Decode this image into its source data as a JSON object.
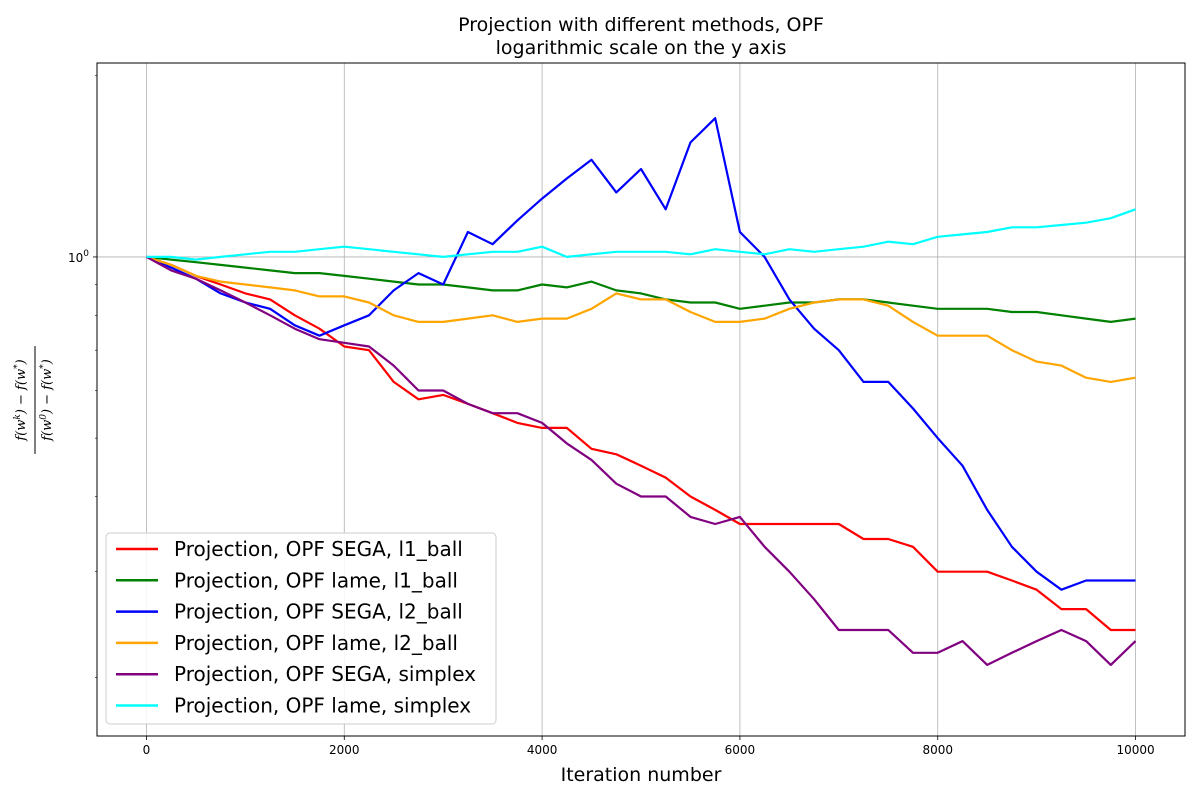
{
  "chart_data": {
    "type": "line",
    "title": "Projection with different methods, OPF",
    "subtitle": "logarithmic scale on the y axis",
    "xlabel": "Iteration number",
    "ylabel": "(f(w^k) − f(w*)) / (f(w^0) − f(w*))",
    "xlim": [
      -500,
      10500
    ],
    "xticks": [
      0,
      2000,
      4000,
      6000,
      8000,
      10000
    ],
    "ylim": [
      0.16,
      2.1
    ],
    "yscale": "log",
    "yticks": [
      1
    ],
    "yticklabel_base": "10",
    "yticklabel_exp": "0",
    "grid": true,
    "legend_position": "lower-left",
    "series": [
      {
        "name": "Projection, OPF SEGA, l1_ball",
        "color": "#ff0000",
        "x": [
          0,
          250,
          500,
          750,
          1000,
          1250,
          1500,
          1750,
          2000,
          2250,
          2500,
          2750,
          3000,
          3250,
          3500,
          3750,
          4000,
          4250,
          4500,
          4750,
          5000,
          5250,
          5500,
          5750,
          6000,
          6250,
          6500,
          6750,
          7000,
          7250,
          7500,
          7750,
          8000,
          8250,
          8500,
          8750,
          9000,
          9250,
          9500,
          9750,
          10000
        ],
        "y": [
          1.0,
          0.97,
          0.93,
          0.9,
          0.87,
          0.85,
          0.8,
          0.76,
          0.71,
          0.7,
          0.62,
          0.58,
          0.59,
          0.57,
          0.55,
          0.53,
          0.52,
          0.52,
          0.48,
          0.47,
          0.45,
          0.43,
          0.4,
          0.38,
          0.36,
          0.36,
          0.36,
          0.36,
          0.36,
          0.34,
          0.34,
          0.33,
          0.3,
          0.3,
          0.3,
          0.29,
          0.28,
          0.26,
          0.26,
          0.24,
          0.24
        ]
      },
      {
        "name": "Projection, OPF lame, l1_ball",
        "color": "#008000",
        "x": [
          0,
          250,
          500,
          750,
          1000,
          1250,
          1500,
          1750,
          2000,
          2250,
          2500,
          2750,
          3000,
          3250,
          3500,
          3750,
          4000,
          4250,
          4500,
          4750,
          5000,
          5250,
          5500,
          5750,
          6000,
          6250,
          6500,
          6750,
          7000,
          7250,
          7500,
          7750,
          8000,
          8250,
          8500,
          8750,
          9000,
          9250,
          9500,
          9750,
          10000
        ],
        "y": [
          1.0,
          0.99,
          0.98,
          0.97,
          0.96,
          0.95,
          0.94,
          0.94,
          0.93,
          0.92,
          0.91,
          0.9,
          0.9,
          0.89,
          0.88,
          0.88,
          0.9,
          0.89,
          0.91,
          0.88,
          0.87,
          0.85,
          0.84,
          0.84,
          0.82,
          0.83,
          0.84,
          0.84,
          0.85,
          0.85,
          0.84,
          0.83,
          0.82,
          0.82,
          0.82,
          0.81,
          0.81,
          0.8,
          0.79,
          0.78,
          0.79
        ]
      },
      {
        "name": "Projection, OPF SEGA, l2_ball",
        "color": "#0000ff",
        "x": [
          0,
          250,
          500,
          750,
          1000,
          1250,
          1500,
          1750,
          2000,
          2250,
          2500,
          2750,
          3000,
          3250,
          3500,
          3750,
          4000,
          4250,
          4500,
          4750,
          5000,
          5250,
          5500,
          5750,
          6000,
          6250,
          6500,
          6750,
          7000,
          7250,
          7500,
          7750,
          8000,
          8250,
          8500,
          8750,
          9000,
          9250,
          9500,
          9750,
          10000
        ],
        "y": [
          1.0,
          0.96,
          0.92,
          0.87,
          0.84,
          0.82,
          0.77,
          0.74,
          0.77,
          0.8,
          0.88,
          0.94,
          0.9,
          1.1,
          1.05,
          1.15,
          1.25,
          1.35,
          1.45,
          1.28,
          1.4,
          1.2,
          1.55,
          1.7,
          1.1,
          1.0,
          0.85,
          0.76,
          0.7,
          0.62,
          0.62,
          0.56,
          0.5,
          0.45,
          0.38,
          0.33,
          0.3,
          0.28,
          0.29,
          0.29,
          0.29
        ]
      },
      {
        "name": "Projection, OPF lame, l2_ball",
        "color": "#ffa500",
        "x": [
          0,
          250,
          500,
          750,
          1000,
          1250,
          1500,
          1750,
          2000,
          2250,
          2500,
          2750,
          3000,
          3250,
          3500,
          3750,
          4000,
          4250,
          4500,
          4750,
          5000,
          5250,
          5500,
          5750,
          6000,
          6250,
          6500,
          6750,
          7000,
          7250,
          7500,
          7750,
          8000,
          8250,
          8500,
          8750,
          9000,
          9250,
          9500,
          9750,
          10000
        ],
        "y": [
          1.0,
          0.97,
          0.93,
          0.91,
          0.9,
          0.89,
          0.88,
          0.86,
          0.86,
          0.84,
          0.8,
          0.78,
          0.78,
          0.79,
          0.8,
          0.78,
          0.79,
          0.79,
          0.82,
          0.87,
          0.85,
          0.85,
          0.81,
          0.78,
          0.78,
          0.79,
          0.82,
          0.84,
          0.85,
          0.85,
          0.83,
          0.78,
          0.74,
          0.74,
          0.74,
          0.7,
          0.67,
          0.66,
          0.63,
          0.62,
          0.63
        ]
      },
      {
        "name": "Projection, OPF SEGA, simplex",
        "color": "#800080",
        "x": [
          0,
          250,
          500,
          750,
          1000,
          1250,
          1500,
          1750,
          2000,
          2250,
          2500,
          2750,
          3000,
          3250,
          3500,
          3750,
          4000,
          4250,
          4500,
          4750,
          5000,
          5250,
          5500,
          5750,
          6000,
          6250,
          6500,
          6750,
          7000,
          7250,
          7500,
          7750,
          8000,
          8250,
          8500,
          8750,
          9000,
          9250,
          9500,
          9750,
          10000
        ],
        "y": [
          1.0,
          0.95,
          0.92,
          0.88,
          0.84,
          0.8,
          0.76,
          0.73,
          0.72,
          0.71,
          0.66,
          0.6,
          0.6,
          0.57,
          0.55,
          0.55,
          0.53,
          0.49,
          0.46,
          0.42,
          0.4,
          0.4,
          0.37,
          0.36,
          0.37,
          0.33,
          0.3,
          0.27,
          0.24,
          0.24,
          0.24,
          0.22,
          0.22,
          0.23,
          0.21,
          0.22,
          0.23,
          0.24,
          0.23,
          0.21,
          0.23
        ]
      },
      {
        "name": "Projection, OPF lame, simplex",
        "color": "#00ffff",
        "x": [
          0,
          250,
          500,
          750,
          1000,
          1250,
          1500,
          1750,
          2000,
          2250,
          2500,
          2750,
          3000,
          3250,
          3500,
          3750,
          4000,
          4250,
          4500,
          4750,
          5000,
          5250,
          5500,
          5750,
          6000,
          6250,
          6500,
          6750,
          7000,
          7250,
          7500,
          7750,
          8000,
          8250,
          8500,
          8750,
          9000,
          9250,
          9500,
          9750,
          10000
        ],
        "y": [
          1.0,
          1.0,
          0.99,
          1.0,
          1.01,
          1.02,
          1.02,
          1.03,
          1.04,
          1.03,
          1.02,
          1.01,
          1.0,
          1.01,
          1.02,
          1.02,
          1.04,
          1.0,
          1.01,
          1.02,
          1.02,
          1.02,
          1.01,
          1.03,
          1.02,
          1.01,
          1.03,
          1.02,
          1.03,
          1.04,
          1.06,
          1.05,
          1.08,
          1.09,
          1.1,
          1.12,
          1.12,
          1.13,
          1.14,
          1.16,
          1.2
        ]
      }
    ]
  }
}
